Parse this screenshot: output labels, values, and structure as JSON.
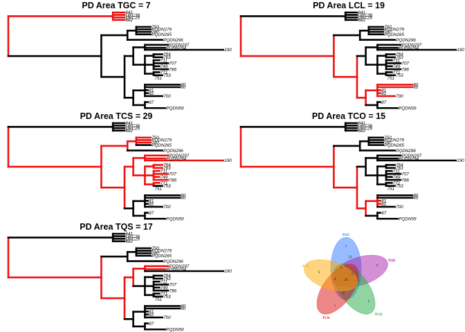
{
  "chart_data": {
    "type": "phylogenetic-tree-panels",
    "tree": {
      "root": "n0",
      "nodes": {
        "n0": {
          "depth": 0,
          "children": [
            "nA",
            "nB"
          ]
        },
        "nA": {
          "depth": 0.36,
          "children": [
            "t641",
            "tURC36",
            "tURC26",
            "t682"
          ]
        },
        "nB": {
          "depth": 0.32,
          "children": [
            "nC",
            "nF"
          ]
        },
        "nC": {
          "depth": 0.41,
          "children": [
            "nD",
            "tPQDN296"
          ]
        },
        "nD": {
          "depth": 0.44,
          "children": [
            "t750",
            "tPQDN279",
            "t767",
            "tPQDN265"
          ]
        },
        "nF": {
          "depth": 0.4,
          "children": [
            "nG",
            "nM"
          ]
        },
        "nG": {
          "depth": 0.43,
          "children": [
            "nH",
            "nI"
          ]
        },
        "nH": {
          "depth": 0.47,
          "children": [
            "tPQDN297",
            "tPQDN294",
            "t190"
          ]
        },
        "nI": {
          "depth": 0.47,
          "children": [
            "nJ",
            "nK",
            "nL"
          ]
        },
        "nJ": {
          "depth": 0.5,
          "children": [
            "t764",
            "t763"
          ]
        },
        "nK": {
          "depth": 0.5,
          "children": [
            "t711",
            "t707",
            "t749",
            "t786"
          ]
        },
        "nL": {
          "depth": 0.5,
          "children": [
            "t771",
            "t753"
          ]
        },
        "nM": {
          "depth": 0.43,
          "children": [
            "nN",
            "nO"
          ]
        },
        "nN": {
          "depth": 0.47,
          "children": [
            "t80",
            "t60",
            "t81",
            "t82",
            "t700"
          ]
        },
        "nO": {
          "depth": 0.47,
          "children": [
            "t87",
            "tPQDN59"
          ]
        }
      },
      "tips": [
        {
          "id": "t641",
          "label": "641",
          "depth": 0.4
        },
        {
          "id": "tURC36",
          "label": "URC36",
          "depth": 0.4
        },
        {
          "id": "tURC26",
          "label": "URC26",
          "depth": 0.4
        },
        {
          "id": "t682",
          "label": "682",
          "depth": 0.4
        },
        {
          "id": "t750",
          "label": "750",
          "depth": 0.49
        },
        {
          "id": "tPQDN279",
          "label": "PQDN279",
          "depth": 0.49
        },
        {
          "id": "t767",
          "label": "767",
          "depth": 0.49
        },
        {
          "id": "tPQDN265",
          "label": "PQDN265",
          "depth": 0.49
        },
        {
          "id": "tPQDN296",
          "label": "PQDN296",
          "depth": 0.53
        },
        {
          "id": "tPQDN297",
          "label": "PQDN297",
          "depth": 0.55
        },
        {
          "id": "tPQDN294",
          "label": "PQDN294",
          "depth": 0.54
        },
        {
          "id": "t190",
          "label": "190",
          "depth": 0.74
        },
        {
          "id": "t764",
          "label": "764",
          "depth": 0.53
        },
        {
          "id": "t763",
          "label": "763",
          "depth": 0.53
        },
        {
          "id": "t711",
          "label": "711",
          "depth": 0.52
        },
        {
          "id": "t707",
          "label": "707",
          "depth": 0.55
        },
        {
          "id": "t749",
          "label": "749",
          "depth": 0.52
        },
        {
          "id": "t786",
          "label": "786",
          "depth": 0.55
        },
        {
          "id": "t771",
          "label": "771",
          "depth": 0.52
        },
        {
          "id": "t753",
          "label": "753",
          "depth": 0.53
        },
        {
          "id": "t751",
          "label": "751",
          "depth": 0.5
        },
        {
          "id": "t80",
          "label": "80",
          "depth": 0.59
        },
        {
          "id": "t60",
          "label": "60",
          "depth": 0.59
        },
        {
          "id": "t81",
          "label": "81",
          "depth": 0.48
        },
        {
          "id": "t82",
          "label": "82",
          "depth": 0.48
        },
        {
          "id": "t700",
          "label": "700",
          "depth": 0.53
        },
        {
          "id": "t87",
          "label": "87",
          "depth": 0.48
        },
        {
          "id": "tPQDN59",
          "label": "PQDN59",
          "depth": 0.54
        }
      ]
    },
    "panels": [
      {
        "title": "PD Area TGC = 7",
        "highlight_tips": [
          "t641",
          "tURC36",
          "tURC26",
          "t682"
        ]
      },
      {
        "title": "PD Area LCL = 19",
        "highlight_tips": [
          "t80",
          "t60",
          "t81",
          "t82",
          "t700"
        ]
      },
      {
        "title": "PD Area TCS = 29",
        "highlight_tips": [
          "t750",
          "tPQDN279",
          "t767",
          "tPQDN297",
          "tPQDN294",
          "t190",
          "t764",
          "t763",
          "t711",
          "t707",
          "t749",
          "t786",
          "t771"
        ]
      },
      {
        "title": "PD Area TCO = 15",
        "highlight_tips": [
          "t81",
          "t82"
        ]
      },
      {
        "title": "PD Area TQS = 17",
        "highlight_tips": [
          "tPQDN297",
          "tPQDN294"
        ]
      }
    ],
    "highlight_color": "#ee1111",
    "base_color": "#000000",
    "venn": {
      "sets": [
        {
          "name": "TGC",
          "color": "#3377ff"
        },
        {
          "name": "TQS",
          "color": "#aa22aa"
        },
        {
          "name": "TCO",
          "color": "#22aa44"
        },
        {
          "name": "TCS",
          "color": "#dd1111"
        },
        {
          "name": "LCL",
          "color": "#ffaa00"
        }
      ],
      "counts": [
        "7",
        "4",
        "1",
        "1",
        "5",
        "23",
        "1",
        "6",
        "4",
        "3",
        "2",
        "28"
      ]
    }
  }
}
